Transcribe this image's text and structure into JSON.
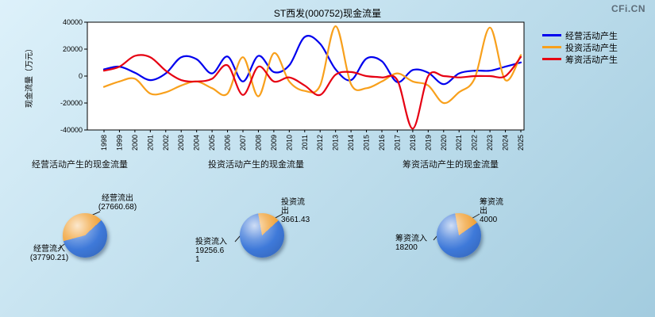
{
  "header": {
    "logo": "CFi.CN"
  },
  "chart_data": [
    {
      "type": "line",
      "title": "ST西发(000752)现金流量",
      "ylabel": "现金流量（万元）",
      "xlabel": "",
      "ylim": [
        -40000,
        40000
      ],
      "yticks": [
        40000,
        20000,
        0,
        -20000,
        -40000
      ],
      "grid": false,
      "legend_position": "top-right",
      "x": [
        1998,
        1999,
        2000,
        2001,
        2002,
        2003,
        2004,
        2005,
        2006,
        2007,
        2008,
        2009,
        2010,
        2011,
        2012,
        2013,
        2014,
        2015,
        2016,
        2017,
        2018,
        2019,
        2020,
        2021,
        2022,
        2023,
        2024,
        2025
      ],
      "series": [
        {
          "name": "经营活动产生",
          "color": "#0000ee",
          "values": [
            5000,
            7000,
            2500,
            -3000,
            2000,
            14000,
            12500,
            2000,
            14500,
            -4000,
            15000,
            3000,
            8000,
            29000,
            24000,
            5000,
            -3000,
            13000,
            11000,
            -4500,
            4500,
            2500,
            -6000,
            2000,
            4000,
            4000,
            7000,
            10130
          ]
        },
        {
          "name": "投资活动产生",
          "color": "#f8a01c",
          "values": [
            -8000,
            -4000,
            -2000,
            -13000,
            -12000,
            -7000,
            -4000,
            -9000,
            -13000,
            14000,
            -15000,
            17000,
            -4000,
            -11000,
            -7000,
            37000,
            -6000,
            -9000,
            -4000,
            2000,
            -4000,
            -7000,
            -20000,
            -12000,
            -2000,
            36000,
            -3000,
            15595
          ]
        },
        {
          "name": "筹资活动产生",
          "color": "#e60012",
          "values": [
            4000,
            7000,
            15000,
            14000,
            4000,
            -3000,
            -4000,
            -2000,
            8000,
            -14000,
            7000,
            -4000,
            -1000,
            -7000,
            -14000,
            1000,
            3000,
            0,
            -1000,
            -3000,
            -39000,
            0,
            0,
            -1000,
            0,
            0,
            0,
            14200
          ]
        }
      ]
    },
    {
      "type": "pie",
      "title": "经营活动产生的现金流量",
      "start_deg": 255,
      "slices": [
        {
          "label": "经营流出",
          "value": 27660.68,
          "color": "#f0a238",
          "display": "经营流出\n(27660.68)"
        },
        {
          "label": "经营流入",
          "value": 37790.21,
          "color": "#3e79d9",
          "display": "经营流入\n(37790.21)"
        }
      ]
    },
    {
      "type": "pie",
      "title": "投资活动产生的现金流量",
      "start_deg": 350,
      "slices": [
        {
          "label": "投资流出",
          "value": 3661.43,
          "color": "#f0a238",
          "display": "投资流\n出\n3661.43"
        },
        {
          "label": "投资流入",
          "value": 19256.61,
          "color": "#3e79d9",
          "display": "投资流入\n19256.6\n1"
        }
      ]
    },
    {
      "type": "pie",
      "title": "筹资活动产生的现金流量",
      "start_deg": 350,
      "slices": [
        {
          "label": "筹资流出",
          "value": 4000,
          "color": "#f0a238",
          "display": "筹资流\n出\n4000"
        },
        {
          "label": "筹资流入",
          "value": 18200,
          "color": "#3e79d9",
          "display": "筹资流入\n18200"
        }
      ]
    }
  ]
}
